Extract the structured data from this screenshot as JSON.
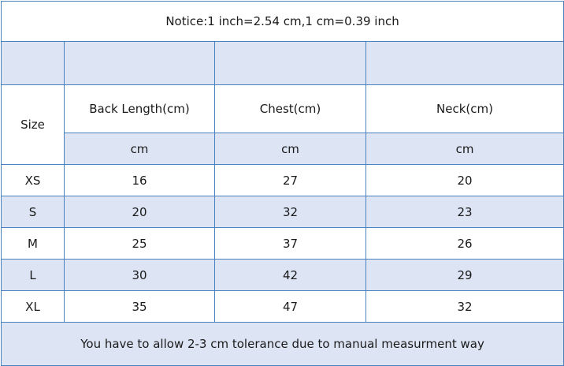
{
  "notice": "Notice:1 inch=2.54 cm,1 cm=0.39 inch",
  "header": {
    "size_label": "Size",
    "columns": [
      "Back Length(cm)",
      "Chest(cm)",
      "Neck(cm)"
    ],
    "units": [
      "cm",
      "cm",
      "cm"
    ]
  },
  "rows": [
    {
      "size": "XS",
      "values": [
        "16",
        "27",
        "20"
      ]
    },
    {
      "size": "S",
      "values": [
        "20",
        "32",
        "23"
      ]
    },
    {
      "size": "M",
      "values": [
        "25",
        "37",
        "26"
      ]
    },
    {
      "size": "L",
      "values": [
        "30",
        "42",
        "29"
      ]
    },
    {
      "size": "XL",
      "values": [
        "35",
        "47",
        "32"
      ]
    }
  ],
  "footer": "You have to allow 2-3 cm tolerance due to manual measurment way",
  "colors": {
    "border": "#4a82c0",
    "shaded_row": "#dde5f5"
  }
}
